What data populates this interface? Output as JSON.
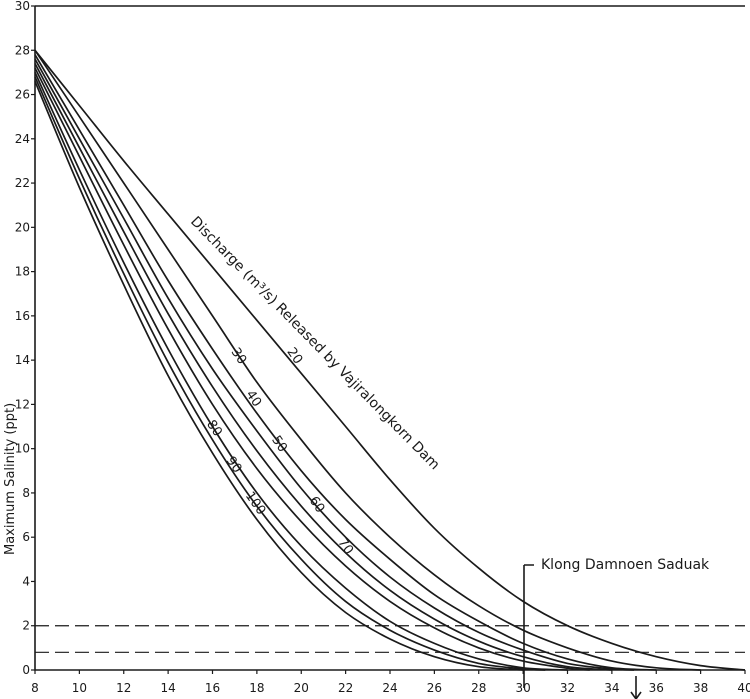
{
  "chart_data": {
    "type": "line",
    "xlabel": "",
    "ylabel": "Maximum Salinity (ppt)",
    "xlim": [
      8,
      40
    ],
    "ylim": [
      0,
      30
    ],
    "x_ticks": [
      8,
      10,
      12,
      14,
      16,
      18,
      20,
      22,
      24,
      26,
      28,
      30,
      32,
      34,
      36,
      38,
      40
    ],
    "y_ticks": [
      0,
      2,
      4,
      6,
      8,
      10,
      12,
      14,
      16,
      18,
      20,
      22,
      24,
      26,
      28,
      30
    ],
    "y_tick_labels": [
      "0",
      "2",
      "4",
      "6",
      "8",
      "10",
      "12",
      "14",
      "16",
      "18",
      "20",
      "22",
      "24",
      "26",
      "28",
      "30"
    ],
    "annotation_title": "Discharge (m³/s) Released by Vajiralongkorn Dam",
    "series": [
      {
        "name": "20",
        "x": [
          8,
          10,
          12,
          14,
          16,
          18,
          20,
          22,
          24,
          26,
          28,
          30,
          32,
          34,
          36,
          38,
          40
        ],
        "y": [
          28,
          25.5,
          23,
          20.6,
          18.2,
          15.8,
          13.4,
          11.0,
          8.6,
          6.4,
          4.6,
          3.1,
          2.0,
          1.2,
          0.6,
          0.2,
          0
        ]
      },
      {
        "name": "30",
        "x": [
          8,
          10,
          12,
          14,
          16,
          18,
          20,
          22,
          24,
          26,
          28,
          30,
          32,
          34,
          36,
          38
        ],
        "y": [
          28,
          25.0,
          22.0,
          19.0,
          16.0,
          13.0,
          10.4,
          8.0,
          6.0,
          4.3,
          2.9,
          1.8,
          1.0,
          0.4,
          0.1,
          0
        ]
      },
      {
        "name": "40",
        "x": [
          8,
          10,
          12,
          14,
          16,
          18,
          20,
          22,
          24,
          26,
          28,
          30,
          32,
          34,
          36
        ],
        "y": [
          27.8,
          24.4,
          21.0,
          17.6,
          14.5,
          11.6,
          9.0,
          6.8,
          5.0,
          3.4,
          2.2,
          1.2,
          0.5,
          0.1,
          0
        ]
      },
      {
        "name": "50",
        "x": [
          8,
          10,
          12,
          14,
          16,
          18,
          20,
          22,
          24,
          26,
          28,
          30,
          32,
          34,
          35
        ],
        "y": [
          27.6,
          24.0,
          20.4,
          16.8,
          13.6,
          10.8,
          8.2,
          6.0,
          4.2,
          2.8,
          1.7,
          0.9,
          0.3,
          0.05,
          0
        ]
      },
      {
        "name": "60",
        "x": [
          8,
          10,
          12,
          14,
          16,
          18,
          20,
          22,
          24,
          26,
          28,
          30,
          32,
          34
        ],
        "y": [
          27.4,
          23.6,
          19.8,
          16.1,
          12.8,
          9.9,
          7.4,
          5.3,
          3.6,
          2.3,
          1.3,
          0.6,
          0.15,
          0
        ]
      },
      {
        "name": "70",
        "x": [
          8,
          10,
          12,
          14,
          16,
          18,
          20,
          22,
          24,
          26,
          28,
          30,
          32,
          33
        ],
        "y": [
          27.2,
          23.2,
          19.2,
          15.4,
          12.0,
          9.1,
          6.7,
          4.7,
          3.1,
          1.9,
          1.0,
          0.4,
          0.08,
          0
        ]
      },
      {
        "name": "80",
        "x": [
          8,
          10,
          12,
          14,
          16,
          18,
          20,
          22,
          24,
          26,
          28,
          30,
          32
        ],
        "y": [
          27.0,
          22.6,
          18.4,
          14.5,
          11.0,
          8.0,
          5.6,
          3.7,
          2.2,
          1.2,
          0.5,
          0.1,
          0
        ]
      },
      {
        "name": "90",
        "x": [
          8,
          10,
          12,
          14,
          16,
          18,
          20,
          22,
          24,
          26,
          28,
          30,
          31
        ],
        "y": [
          26.8,
          22.2,
          17.9,
          13.9,
          10.4,
          7.4,
          5.0,
          3.1,
          1.8,
          0.9,
          0.3,
          0.05,
          0
        ]
      },
      {
        "name": "100",
        "x": [
          8,
          10,
          12,
          14,
          16,
          18,
          20,
          22,
          24,
          26,
          28,
          30
        ],
        "y": [
          26.6,
          21.8,
          17.4,
          13.3,
          9.8,
          6.8,
          4.4,
          2.6,
          1.4,
          0.6,
          0.15,
          0
        ]
      }
    ],
    "reference_lines": [
      {
        "type": "horizontal",
        "y": 2.0,
        "style": "dashed"
      },
      {
        "type": "horizontal",
        "y": 0.8,
        "style": "dashed"
      }
    ],
    "annotations": [
      {
        "text": "Klong Damnoen Saduak",
        "x": 30
      }
    ],
    "grid": false
  }
}
